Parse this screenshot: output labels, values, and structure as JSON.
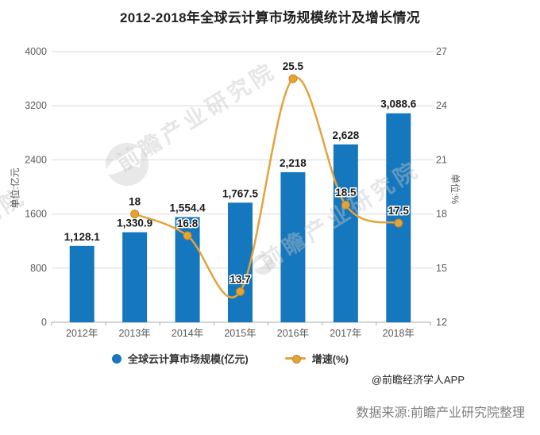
{
  "page": {
    "title": "2012-2018年全球云计算市场规模统计及增长情况",
    "credit": "@前瞻经济学人APP",
    "source": "数据来源:前瞻产业研究院整理",
    "watermark_text": "前瞻产业研究院"
  },
  "chart_data": {
    "type": "combo-bar-line",
    "title": "2012-2018年全球云计算市场规模统计及增长情况",
    "categories": [
      "2012年",
      "2013年",
      "2014年",
      "2015年",
      "2016年",
      "2017年",
      "2018年"
    ],
    "series": [
      {
        "name": "全球云计算市场规模(亿元)",
        "type": "bar",
        "y_axis": "left",
        "color": "#1577bd",
        "values": [
          1128.1,
          1330.9,
          1554.4,
          1767.5,
          2218,
          2628,
          3088.6
        ],
        "labels": [
          "1,128.1",
          "1,330.9",
          "1,554.4",
          "1,767.5",
          "2,218",
          "2,628",
          "3,088.6"
        ]
      },
      {
        "name": "增速(%)",
        "type": "line",
        "y_axis": "right",
        "color": "#e4a339",
        "marker_stroke": "#c8861d",
        "values": [
          null,
          18,
          16.8,
          13.7,
          25.5,
          18.5,
          17.5
        ],
        "labels": [
          "",
          "18",
          "16.8",
          "13.7",
          "25.5",
          "18.5",
          "17.5"
        ]
      }
    ],
    "left_axis": {
      "title": "单位:亿元",
      "range": [
        0,
        4000
      ],
      "ticks": [
        "0",
        "800",
        "1600",
        "2400",
        "3200",
        "4000"
      ]
    },
    "right_axis": {
      "title": "单位:%",
      "range": [
        12,
        27
      ],
      "ticks": [
        "12",
        "15",
        "18",
        "21",
        "24",
        "27"
      ]
    },
    "grid": "horizontal",
    "legend_position": "bottom",
    "colors": {
      "grid": "#d9d9d9",
      "axis_line": "#a9a9a9",
      "tick_text": "#595959",
      "value_label": "#1a1a1a"
    }
  }
}
